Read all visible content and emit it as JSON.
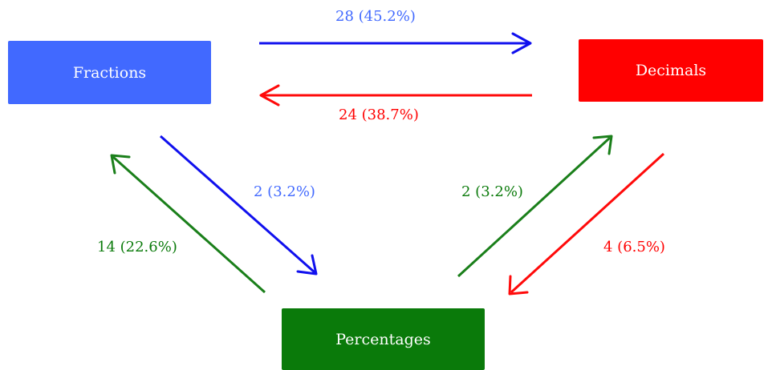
{
  "colors": {
    "fractions": "#4169ff",
    "decimals": "#ff0000",
    "percentages": "#0a7a0a",
    "blue_arrow": "#1010ee",
    "red_arrow": "#ff0a0a",
    "green_arrow": "#1a7f1a"
  },
  "nodes": {
    "fractions": "Fractions",
    "decimals": "Decimals",
    "percentages": "Percentages"
  },
  "edges": {
    "fractions_to_decimals": "28 (45.2%)",
    "decimals_to_fractions": "24 (38.7%)",
    "fractions_to_percentages": "2 (3.2%)",
    "percentages_to_fractions": "14 (22.6%)",
    "percentages_to_decimals": "2 (3.2%)",
    "decimals_to_percentages": "4 (6.5%)"
  }
}
